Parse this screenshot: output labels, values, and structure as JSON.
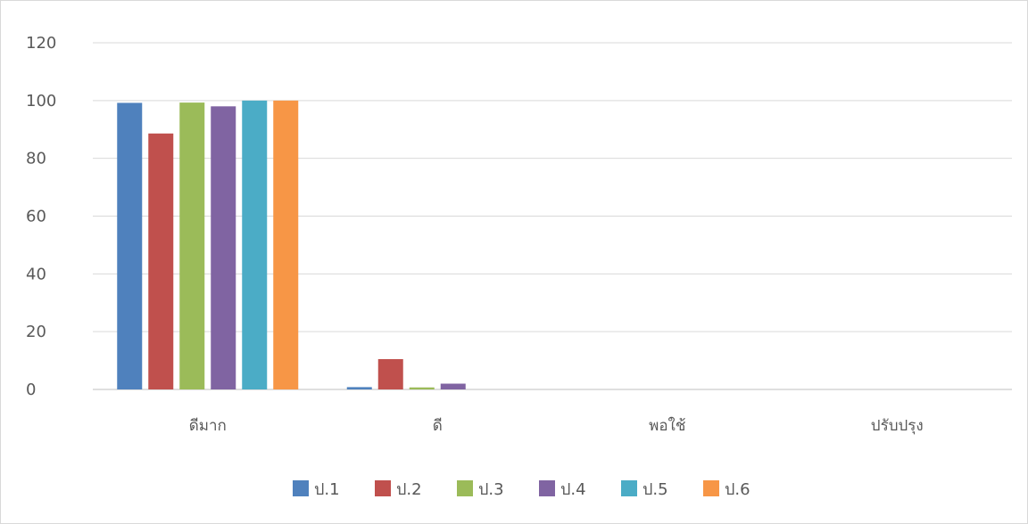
{
  "chart_data": {
    "type": "bar",
    "title": "",
    "xlabel": "",
    "ylabel": "",
    "categories": [
      "ดีมาก",
      "ดี",
      "พอใช้",
      "ปรับปรุง"
    ],
    "y_ticks": [
      "0",
      "20",
      "40",
      "60",
      "80",
      "100",
      "120"
    ],
    "ylim": [
      0,
      120
    ],
    "grid": true,
    "legend_position": "bottom",
    "series": [
      {
        "name": "ป.1",
        "color": "#4F81BD",
        "values": [
          99.2,
          0.8,
          0,
          0
        ]
      },
      {
        "name": "ป.2",
        "color": "#C0504D",
        "values": [
          88.6,
          10.5,
          0,
          0
        ]
      },
      {
        "name": "ป.3",
        "color": "#9BBB59",
        "values": [
          99.3,
          0.7,
          0,
          0
        ]
      },
      {
        "name": "ป.4",
        "color": "#8064A2",
        "values": [
          98.0,
          2.0,
          0,
          0
        ]
      },
      {
        "name": "ป.5",
        "color": "#4BACC6",
        "values": [
          100,
          0,
          0,
          0
        ]
      },
      {
        "name": "ป.6",
        "color": "#F79646",
        "values": [
          100,
          0,
          0,
          0
        ]
      }
    ]
  }
}
